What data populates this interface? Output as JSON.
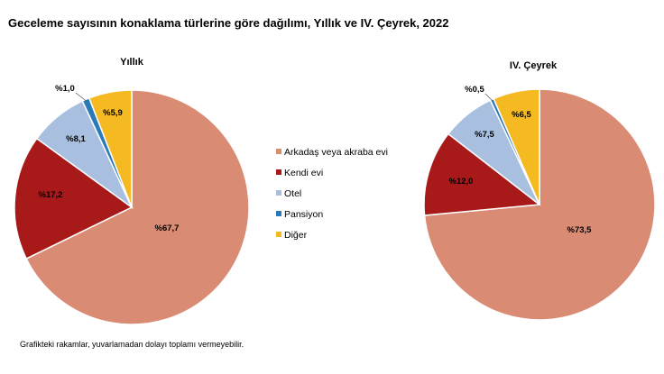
{
  "title": "Geceleme sayısının konaklama türlerine göre dağılımı, Yıllık ve IV. Çeyrek, 2022",
  "footnote": "Grafikteki rakamlar, yuvarlamadan dolayı toplamı vermeyebilir.",
  "chart_data": {
    "type": "pie",
    "legend_position": "center",
    "categories": [
      "Arkadaş veya akraba evi",
      "Kendi evi",
      "Otel",
      "Pansiyon",
      "Diğer"
    ],
    "colors": [
      "#d98b73",
      "#a81a1a",
      "#a8bfe0",
      "#2a7ab8",
      "#f5b921"
    ],
    "pies": [
      {
        "title": "Yıllık",
        "values": [
          67.7,
          17.2,
          8.1,
          1.0,
          5.9
        ],
        "labels": [
          "%67,7",
          "%17,2",
          "%8,1",
          "%1,0",
          "%5,9"
        ]
      },
      {
        "title": "IV. Çeyrek",
        "values": [
          73.5,
          12.0,
          7.5,
          0.5,
          6.5
        ],
        "labels": [
          "%73,5",
          "%12,0",
          "%7,5",
          "%0,5",
          "%6,5"
        ]
      }
    ]
  }
}
